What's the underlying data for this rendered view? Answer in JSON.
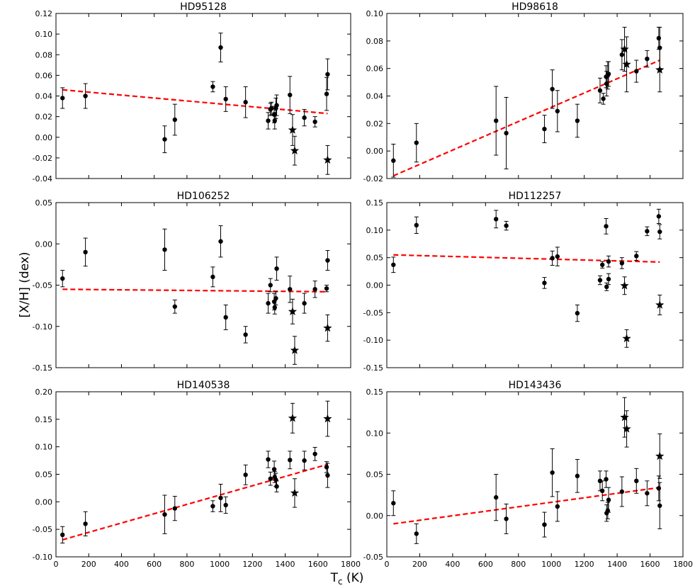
{
  "ylabel": "[X/H] (dex)",
  "xlabel": "T",
  "xlabel_sub": "c",
  "xlabel_unit": " (K)",
  "colors": {
    "fit": "#ff0000",
    "point": "#000000"
  },
  "chart_data": [
    {
      "type": "scatter",
      "title": "HD95128",
      "xlim": [
        0,
        1800
      ],
      "ylim": [
        -0.04,
        0.12
      ],
      "xticks": [],
      "yticks": [
        "-0.04",
        "-0.02",
        "0.00",
        "0.02",
        "0.04",
        "0.06",
        "0.08",
        "0.10",
        "0.12"
      ],
      "fit": [
        [
          40,
          0.046
        ],
        [
          1659,
          0.023
        ]
      ],
      "points": [
        {
          "x": 40,
          "y": 0.038,
          "err": 0.01,
          "m": "o"
        },
        {
          "x": 180,
          "y": 0.04,
          "err": 0.012,
          "m": "o"
        },
        {
          "x": 664,
          "y": -0.002,
          "err": 0.013,
          "m": "o"
        },
        {
          "x": 726,
          "y": 0.017,
          "err": 0.015,
          "m": "o"
        },
        {
          "x": 958,
          "y": 0.049,
          "err": 0.005,
          "m": "o"
        },
        {
          "x": 1006,
          "y": 0.087,
          "err": 0.014,
          "m": "o"
        },
        {
          "x": 1037,
          "y": 0.037,
          "err": 0.012,
          "m": "o"
        },
        {
          "x": 1158,
          "y": 0.034,
          "err": 0.015,
          "m": "o"
        },
        {
          "x": 1296,
          "y": 0.016,
          "err": 0.008,
          "m": "o"
        },
        {
          "x": 1310,
          "y": 0.027,
          "err": 0.006,
          "m": "o"
        },
        {
          "x": 1316,
          "y": 0.028,
          "err": 0.006,
          "m": "o"
        },
        {
          "x": 1333,
          "y": 0.022,
          "err": 0.008,
          "m": "o"
        },
        {
          "x": 1336,
          "y": 0.016,
          "err": 0.008,
          "m": "o"
        },
        {
          "x": 1343,
          "y": 0.028,
          "err": 0.01,
          "m": "o"
        },
        {
          "x": 1348,
          "y": 0.031,
          "err": 0.01,
          "m": "o"
        },
        {
          "x": 1429,
          "y": 0.041,
          "err": 0.018,
          "m": "o"
        },
        {
          "x": 1445,
          "y": 0.007,
          "err": 0.015,
          "m": "*"
        },
        {
          "x": 1458,
          "y": -0.013,
          "err": 0.014,
          "m": "*"
        },
        {
          "x": 1517,
          "y": 0.019,
          "err": 0.008,
          "m": "o"
        },
        {
          "x": 1582,
          "y": 0.015,
          "err": 0.005,
          "m": "o"
        },
        {
          "x": 1653,
          "y": 0.042,
          "err": 0.016,
          "m": "o"
        },
        {
          "x": 1659,
          "y": 0.061,
          "err": 0.015,
          "m": "o"
        },
        {
          "x": 1659,
          "y": -0.022,
          "err": 0.014,
          "m": "*"
        }
      ]
    },
    {
      "type": "scatter",
      "title": "HD98618",
      "xlim": [
        0,
        1800
      ],
      "ylim": [
        -0.02,
        0.1
      ],
      "xticks": [],
      "yticks": [
        "-0.02",
        "0.00",
        "0.02",
        "0.04",
        "0.06",
        "0.08",
        "0.10"
      ],
      "fit": [
        [
          40,
          -0.018
        ],
        [
          1659,
          0.066
        ]
      ],
      "points": [
        {
          "x": 40,
          "y": -0.007,
          "err": 0.012,
          "m": "o"
        },
        {
          "x": 180,
          "y": 0.006,
          "err": 0.014,
          "m": "o"
        },
        {
          "x": 664,
          "y": 0.022,
          "err": 0.025,
          "m": "o"
        },
        {
          "x": 726,
          "y": 0.013,
          "err": 0.026,
          "m": "o"
        },
        {
          "x": 958,
          "y": 0.016,
          "err": 0.01,
          "m": "o"
        },
        {
          "x": 1006,
          "y": 0.045,
          "err": 0.014,
          "m": "o"
        },
        {
          "x": 1037,
          "y": 0.029,
          "err": 0.015,
          "m": "o"
        },
        {
          "x": 1158,
          "y": 0.022,
          "err": 0.012,
          "m": "o"
        },
        {
          "x": 1296,
          "y": 0.044,
          "err": 0.009,
          "m": "o"
        },
        {
          "x": 1316,
          "y": 0.038,
          "err": 0.004,
          "m": "o"
        },
        {
          "x": 1333,
          "y": 0.054,
          "err": 0.008,
          "m": "o"
        },
        {
          "x": 1336,
          "y": 0.049,
          "err": 0.009,
          "m": "o"
        },
        {
          "x": 1343,
          "y": 0.055,
          "err": 0.01,
          "m": "o"
        },
        {
          "x": 1348,
          "y": 0.056,
          "err": 0.009,
          "m": "o"
        },
        {
          "x": 1429,
          "y": 0.07,
          "err": 0.011,
          "m": "o"
        },
        {
          "x": 1445,
          "y": 0.074,
          "err": 0.016,
          "m": "*"
        },
        {
          "x": 1458,
          "y": 0.063,
          "err": 0.02,
          "m": "*"
        },
        {
          "x": 1517,
          "y": 0.058,
          "err": 0.008,
          "m": "o"
        },
        {
          "x": 1582,
          "y": 0.067,
          "err": 0.006,
          "m": "o"
        },
        {
          "x": 1653,
          "y": 0.082,
          "err": 0.008,
          "m": "o"
        },
        {
          "x": 1659,
          "y": 0.075,
          "err": 0.015,
          "m": "o"
        },
        {
          "x": 1659,
          "y": 0.059,
          "err": 0.016,
          "m": "*"
        }
      ]
    },
    {
      "type": "scatter",
      "title": "HD106252",
      "xlim": [
        0,
        1800
      ],
      "ylim": [
        -0.15,
        0.05
      ],
      "xticks": [],
      "yticks": [
        "-0.15",
        "-0.10",
        "-0.05",
        "0.00",
        "0.05"
      ],
      "fit": [
        [
          40,
          -0.055
        ],
        [
          1659,
          -0.058
        ]
      ],
      "points": [
        {
          "x": 40,
          "y": -0.042,
          "err": 0.01,
          "m": "o"
        },
        {
          "x": 180,
          "y": -0.01,
          "err": 0.017,
          "m": "o"
        },
        {
          "x": 664,
          "y": -0.007,
          "err": 0.025,
          "m": "o"
        },
        {
          "x": 726,
          "y": -0.076,
          "err": 0.008,
          "m": "o"
        },
        {
          "x": 958,
          "y": -0.04,
          "err": 0.012,
          "m": "o"
        },
        {
          "x": 1006,
          "y": 0.003,
          "err": 0.019,
          "m": "o"
        },
        {
          "x": 1037,
          "y": -0.089,
          "err": 0.015,
          "m": "o"
        },
        {
          "x": 1158,
          "y": -0.11,
          "err": 0.01,
          "m": "o"
        },
        {
          "x": 1296,
          "y": -0.072,
          "err": 0.012,
          "m": "o"
        },
        {
          "x": 1310,
          "y": -0.05,
          "err": 0.008,
          "m": "o"
        },
        {
          "x": 1333,
          "y": -0.07,
          "err": 0.01,
          "m": "o"
        },
        {
          "x": 1336,
          "y": -0.077,
          "err": 0.008,
          "m": "o"
        },
        {
          "x": 1343,
          "y": -0.066,
          "err": 0.008,
          "m": "o"
        },
        {
          "x": 1348,
          "y": -0.03,
          "err": 0.014,
          "m": "o"
        },
        {
          "x": 1429,
          "y": -0.055,
          "err": 0.016,
          "m": "o"
        },
        {
          "x": 1445,
          "y": -0.082,
          "err": 0.015,
          "m": "*"
        },
        {
          "x": 1458,
          "y": -0.129,
          "err": 0.017,
          "m": "*"
        },
        {
          "x": 1517,
          "y": -0.072,
          "err": 0.012,
          "m": "o"
        },
        {
          "x": 1582,
          "y": -0.055,
          "err": 0.01,
          "m": "o"
        },
        {
          "x": 1653,
          "y": -0.054,
          "err": 0.004,
          "m": "o"
        },
        {
          "x": 1659,
          "y": -0.02,
          "err": 0.012,
          "m": "o"
        },
        {
          "x": 1659,
          "y": -0.102,
          "err": 0.016,
          "m": "*"
        }
      ]
    },
    {
      "type": "scatter",
      "title": "HD112257",
      "xlim": [
        0,
        1800
      ],
      "ylim": [
        -0.15,
        0.15
      ],
      "xticks": [],
      "yticks": [
        "-0.15",
        "-0.10",
        "-0.05",
        "0.00",
        "0.05",
        "0.10",
        "0.15"
      ],
      "fit": [
        [
          40,
          0.055
        ],
        [
          1659,
          0.042
        ]
      ],
      "points": [
        {
          "x": 40,
          "y": 0.037,
          "err": 0.014,
          "m": "o"
        },
        {
          "x": 180,
          "y": 0.109,
          "err": 0.015,
          "m": "o"
        },
        {
          "x": 664,
          "y": 0.12,
          "err": 0.016,
          "m": "o"
        },
        {
          "x": 726,
          "y": 0.108,
          "err": 0.008,
          "m": "o"
        },
        {
          "x": 958,
          "y": 0.004,
          "err": 0.01,
          "m": "o"
        },
        {
          "x": 1006,
          "y": 0.049,
          "err": 0.013,
          "m": "o"
        },
        {
          "x": 1037,
          "y": 0.052,
          "err": 0.017,
          "m": "o"
        },
        {
          "x": 1158,
          "y": -0.051,
          "err": 0.015,
          "m": "o"
        },
        {
          "x": 1296,
          "y": 0.009,
          "err": 0.008,
          "m": "o"
        },
        {
          "x": 1310,
          "y": 0.037,
          "err": 0.006,
          "m": "o"
        },
        {
          "x": 1333,
          "y": 0.107,
          "err": 0.014,
          "m": "o"
        },
        {
          "x": 1336,
          "y": -0.003,
          "err": 0.007,
          "m": "o"
        },
        {
          "x": 1348,
          "y": 0.043,
          "err": 0.01,
          "m": "o"
        },
        {
          "x": 1348,
          "y": 0.011,
          "err": 0.01,
          "m": "o"
        },
        {
          "x": 1429,
          "y": 0.04,
          "err": 0.01,
          "m": "o"
        },
        {
          "x": 1445,
          "y": -0.001,
          "err": 0.016,
          "m": "*"
        },
        {
          "x": 1458,
          "y": -0.097,
          "err": 0.016,
          "m": "*"
        },
        {
          "x": 1517,
          "y": 0.053,
          "err": 0.008,
          "m": "o"
        },
        {
          "x": 1582,
          "y": 0.098,
          "err": 0.008,
          "m": "o"
        },
        {
          "x": 1653,
          "y": 0.125,
          "err": 0.013,
          "m": "o"
        },
        {
          "x": 1659,
          "y": 0.097,
          "err": 0.013,
          "m": "o"
        },
        {
          "x": 1659,
          "y": -0.036,
          "err": 0.018,
          "m": "*"
        }
      ]
    },
    {
      "type": "scatter",
      "title": "HD140538",
      "xlim": [
        0,
        1800
      ],
      "ylim": [
        -0.1,
        0.2
      ],
      "xticks": [
        "0",
        "200",
        "400",
        "600",
        "800",
        "1000",
        "1200",
        "1400",
        "1600",
        "1800"
      ],
      "yticks": [
        "-0.10",
        "-0.05",
        "0.00",
        "0.05",
        "0.10",
        "0.15",
        "0.20"
      ],
      "fit": [
        [
          40,
          -0.069
        ],
        [
          1659,
          0.068
        ]
      ],
      "points": [
        {
          "x": 40,
          "y": -0.06,
          "err": 0.015,
          "m": "o"
        },
        {
          "x": 180,
          "y": -0.04,
          "err": 0.022,
          "m": "o"
        },
        {
          "x": 664,
          "y": -0.023,
          "err": 0.035,
          "m": "o"
        },
        {
          "x": 726,
          "y": -0.012,
          "err": 0.022,
          "m": "o"
        },
        {
          "x": 958,
          "y": -0.008,
          "err": 0.01,
          "m": "o"
        },
        {
          "x": 1006,
          "y": 0.007,
          "err": 0.025,
          "m": "o"
        },
        {
          "x": 1037,
          "y": -0.006,
          "err": 0.015,
          "m": "o"
        },
        {
          "x": 1158,
          "y": 0.049,
          "err": 0.018,
          "m": "o"
        },
        {
          "x": 1296,
          "y": 0.077,
          "err": 0.015,
          "m": "o"
        },
        {
          "x": 1310,
          "y": 0.042,
          "err": 0.012,
          "m": "o"
        },
        {
          "x": 1333,
          "y": 0.059,
          "err": 0.015,
          "m": "o"
        },
        {
          "x": 1336,
          "y": 0.045,
          "err": 0.01,
          "m": "o"
        },
        {
          "x": 1343,
          "y": 0.04,
          "err": 0.012,
          "m": "o"
        },
        {
          "x": 1348,
          "y": 0.028,
          "err": 0.01,
          "m": "o"
        },
        {
          "x": 1429,
          "y": 0.076,
          "err": 0.016,
          "m": "o"
        },
        {
          "x": 1445,
          "y": 0.152,
          "err": 0.027,
          "m": "*"
        },
        {
          "x": 1458,
          "y": 0.016,
          "err": 0.026,
          "m": "*"
        },
        {
          "x": 1517,
          "y": 0.075,
          "err": 0.017,
          "m": "o"
        },
        {
          "x": 1582,
          "y": 0.087,
          "err": 0.012,
          "m": "o"
        },
        {
          "x": 1653,
          "y": 0.063,
          "err": 0.01,
          "m": "o"
        },
        {
          "x": 1659,
          "y": 0.048,
          "err": 0.022,
          "m": "o"
        },
        {
          "x": 1659,
          "y": 0.151,
          "err": 0.032,
          "m": "*"
        }
      ]
    },
    {
      "type": "scatter",
      "title": "HD143436",
      "xlim": [
        0,
        1800
      ],
      "ylim": [
        -0.05,
        0.15
      ],
      "xticks": [
        "0",
        "200",
        "400",
        "600",
        "800",
        "1000",
        "1200",
        "1400",
        "1600",
        "1800"
      ],
      "yticks": [
        "-0.05",
        "0.00",
        "0.05",
        "0.10",
        "0.15"
      ],
      "fit": [
        [
          40,
          -0.01
        ],
        [
          1659,
          0.034
        ]
      ],
      "points": [
        {
          "x": 40,
          "y": 0.015,
          "err": 0.015,
          "m": "o"
        },
        {
          "x": 180,
          "y": -0.022,
          "err": 0.012,
          "m": "o"
        },
        {
          "x": 664,
          "y": 0.022,
          "err": 0.028,
          "m": "o"
        },
        {
          "x": 726,
          "y": -0.004,
          "err": 0.018,
          "m": "o"
        },
        {
          "x": 958,
          "y": -0.011,
          "err": 0.015,
          "m": "o"
        },
        {
          "x": 1006,
          "y": 0.052,
          "err": 0.029,
          "m": "o"
        },
        {
          "x": 1037,
          "y": 0.011,
          "err": 0.018,
          "m": "o"
        },
        {
          "x": 1158,
          "y": 0.048,
          "err": 0.02,
          "m": "o"
        },
        {
          "x": 1296,
          "y": 0.042,
          "err": 0.012,
          "m": "o"
        },
        {
          "x": 1310,
          "y": 0.03,
          "err": 0.012,
          "m": "o"
        },
        {
          "x": 1333,
          "y": 0.044,
          "err": 0.01,
          "m": "o"
        },
        {
          "x": 1336,
          "y": 0.003,
          "err": 0.01,
          "m": "o"
        },
        {
          "x": 1343,
          "y": 0.006,
          "err": 0.01,
          "m": "o"
        },
        {
          "x": 1348,
          "y": 0.019,
          "err": 0.015,
          "m": "o"
        },
        {
          "x": 1429,
          "y": 0.029,
          "err": 0.018,
          "m": "o"
        },
        {
          "x": 1445,
          "y": 0.119,
          "err": 0.024,
          "m": "*"
        },
        {
          "x": 1458,
          "y": 0.105,
          "err": 0.022,
          "m": "*"
        },
        {
          "x": 1517,
          "y": 0.042,
          "err": 0.015,
          "m": "o"
        },
        {
          "x": 1582,
          "y": 0.027,
          "err": 0.015,
          "m": "o"
        },
        {
          "x": 1653,
          "y": 0.033,
          "err": 0.015,
          "m": "o"
        },
        {
          "x": 1659,
          "y": 0.012,
          "err": 0.028,
          "m": "o"
        },
        {
          "x": 1659,
          "y": 0.072,
          "err": 0.027,
          "m": "*"
        }
      ]
    }
  ]
}
